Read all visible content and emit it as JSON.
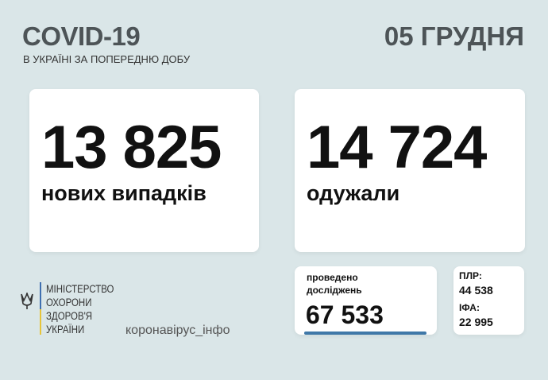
{
  "header": {
    "title": "COVID-19",
    "subtitle": "В УКРАЇНІ ЗА ПОПЕРЕДНЮ ДОБУ",
    "date": "05 ГРУДНЯ"
  },
  "cases": {
    "value": "13 825",
    "label": "нових випадків"
  },
  "recovered": {
    "value": "14 724",
    "label": "одужали"
  },
  "tests": {
    "label_line1": "проведено",
    "label_line2": "досліджень",
    "value": "67 533",
    "accent": "#3f78a8"
  },
  "breakdown": {
    "pcr_label": "ПЛР:",
    "pcr_value": "44 538",
    "ifa_label": "ІФА:",
    "ifa_value": "22 995"
  },
  "ministry": {
    "lines": [
      "МІНІСТЕРСТВО",
      "ОХОРОНИ",
      "ЗДОРОВ'Я",
      "УКРАЇНИ"
    ],
    "icon": "trident-icon"
  },
  "website": "коронавірус_інфо"
}
